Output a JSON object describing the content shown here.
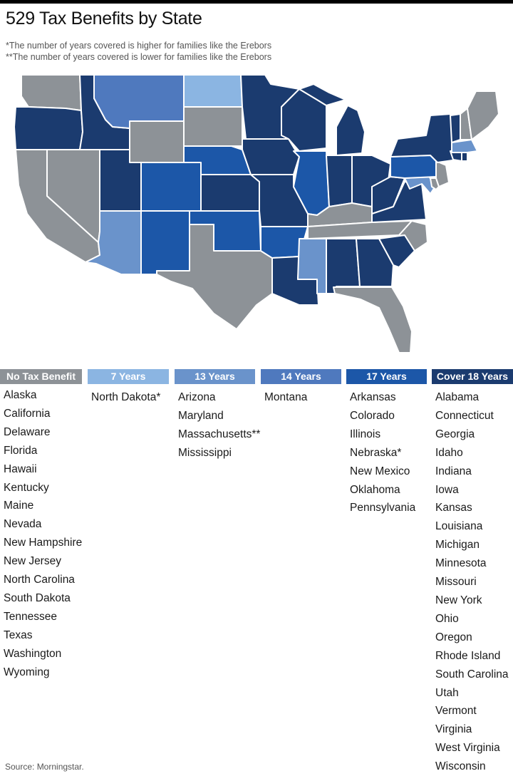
{
  "title": "529 Tax Benefits by State",
  "notes": [
    "*The number of years covered is higher for families like the Erebors",
    "**The number of years covered is lower for families like the Erebors"
  ],
  "colors": {
    "none": "#8d9297",
    "y7": "#8bb5e2",
    "y13": "#6a93cb",
    "y14": "#4f79be",
    "y17": "#1c57a8",
    "y18": "#1b3b6f"
  },
  "categories": [
    {
      "key": "none",
      "label": "No Tax Benefit",
      "states": [
        "Alaska",
        "California",
        "Delaware",
        "Florida",
        "Hawaii",
        "Kentucky",
        "Maine",
        "Nevada",
        "New Hampshire",
        "New Jersey",
        "North Carolina",
        "South Dakota",
        "Tennessee",
        "Texas",
        "Washington",
        "Wyoming"
      ]
    },
    {
      "key": "y7",
      "label": "7 Years",
      "states": [
        "North Dakota*"
      ]
    },
    {
      "key": "y13",
      "label": "13 Years",
      "states": [
        "Arizona",
        "Maryland",
        "Massachusetts**",
        "Mississippi"
      ]
    },
    {
      "key": "y14",
      "label": "14 Years",
      "states": [
        "Montana"
      ]
    },
    {
      "key": "y17",
      "label": "17 Years",
      "states": [
        "Arkansas",
        "Colorado",
        "Illinois",
        "Nebraska*",
        "New Mexico",
        "Oklahoma",
        "Pennsylvania"
      ]
    },
    {
      "key": "y18",
      "label": "Cover 18 Years",
      "states": [
        "Alabama",
        "Connecticut",
        "Georgia",
        "Idaho",
        "Indiana",
        "Iowa",
        "Kansas",
        "Louisiana",
        "Michigan",
        "Minnesota",
        "Missouri",
        "New York",
        "Ohio",
        "Oregon",
        "Rhode Island",
        "South Carolina",
        "Utah",
        "Vermont",
        "Virginia",
        "West Virginia",
        "Wisconsin"
      ]
    }
  ],
  "source": "Source: Morningstar."
}
